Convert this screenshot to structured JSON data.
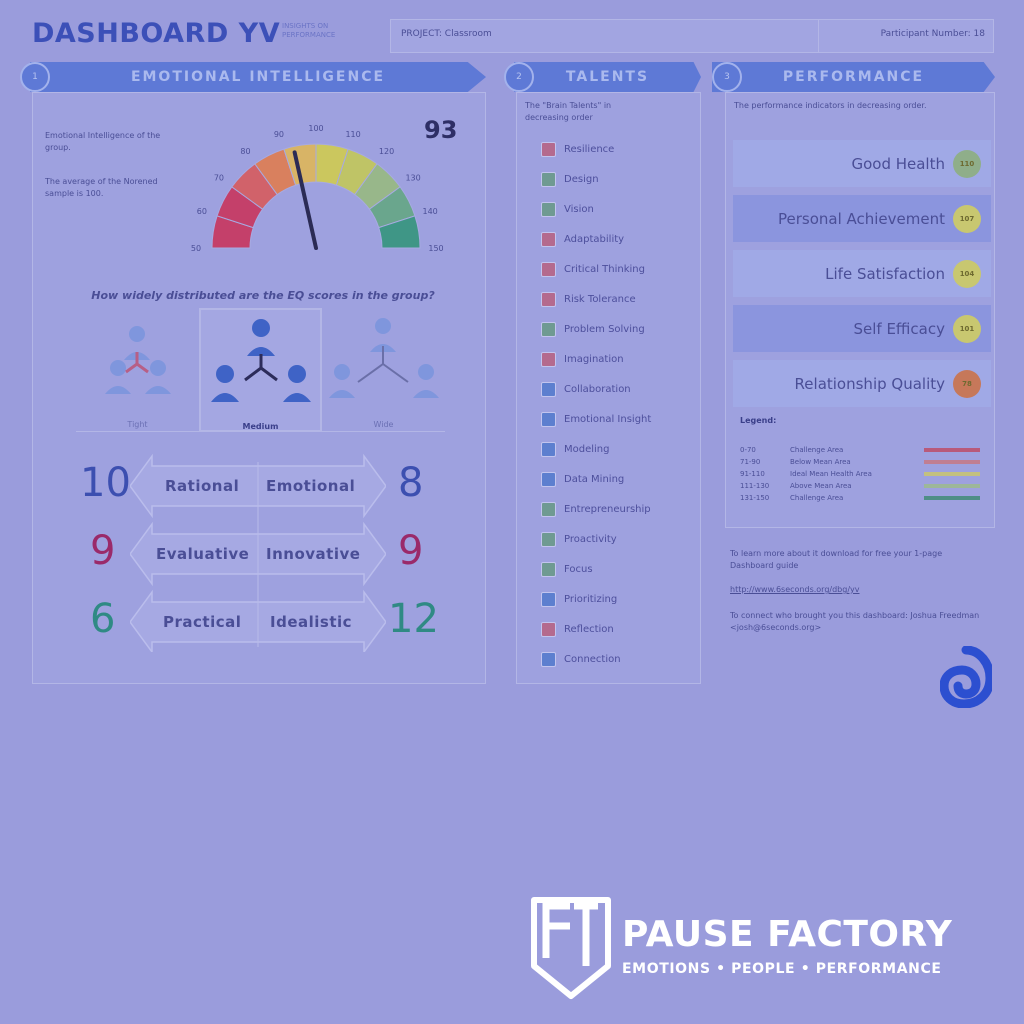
{
  "header": {
    "title": "DASHBOARD YV",
    "subtitle": "INSIGHTS ON PERFORMANCE",
    "project_label": "PROJECT: Classroom",
    "participant_label": "Participant Number: 18"
  },
  "emotional_intelligence": {
    "banner": "EMOTIONAL INTELLIGENCE",
    "number": "1",
    "desc1": "Emotional Intelligence of the group.",
    "desc2": "The average of the Norened sample is 100.",
    "score": "93",
    "score_value": 93,
    "gauge_min": 50,
    "gauge_max": 150,
    "gauge_ticks": [
      "50",
      "60",
      "70",
      "80",
      "90",
      "100",
      "110",
      "120",
      "130",
      "140",
      "150"
    ],
    "question": "How widely distributed are the EQ scores in the group?",
    "distribution": [
      {
        "label": "Tight",
        "selected": false
      },
      {
        "label": "Medium",
        "selected": true
      },
      {
        "label": "Wide",
        "selected": false
      }
    ],
    "pairs": [
      {
        "left_value": "10",
        "left_label": "Rational",
        "right_label": "Emotional",
        "right_value": "8",
        "left_color": "#3c4fb0",
        "right_color": "#3c4fb0"
      },
      {
        "left_value": "9",
        "left_label": "Evaluative",
        "right_label": "Innovative",
        "right_value": "9",
        "left_color": "#9a2a6a",
        "right_color": "#9a2a6a"
      },
      {
        "left_value": "6",
        "left_label": "Practical",
        "right_label": "Idealistic",
        "right_value": "12",
        "left_color": "#2f8a84",
        "right_color": "#2f8a84"
      }
    ]
  },
  "talents": {
    "banner": "TALENTS",
    "number": "2",
    "intro": "The \"Brain Talents\" in decreasing order",
    "items": [
      {
        "label": "Resilience",
        "color": "#b46a8e"
      },
      {
        "label": "Design",
        "color": "#6f9a92"
      },
      {
        "label": "Vision",
        "color": "#6f9a92"
      },
      {
        "label": "Adaptability",
        "color": "#b46a8e"
      },
      {
        "label": "Critical Thinking",
        "color": "#b46a8e"
      },
      {
        "label": "Risk Tolerance",
        "color": "#b46a8e"
      },
      {
        "label": "Problem Solving",
        "color": "#6f9a92"
      },
      {
        "label": "Imagination",
        "color": "#b46a8e"
      },
      {
        "label": "Collaboration",
        "color": "#5d7fcf"
      },
      {
        "label": "Emotional Insight",
        "color": "#5d7fcf"
      },
      {
        "label": "Modeling",
        "color": "#5d7fcf"
      },
      {
        "label": "Data Mining",
        "color": "#5d7fcf"
      },
      {
        "label": "Entrepreneurship",
        "color": "#6f9a92"
      },
      {
        "label": "Proactivity",
        "color": "#6f9a92"
      },
      {
        "label": "Focus",
        "color": "#6f9a92"
      },
      {
        "label": "Prioritizing",
        "color": "#5d7fcf"
      },
      {
        "label": "Reflection",
        "color": "#b46a8e"
      },
      {
        "label": "Connection",
        "color": "#5d7fcf"
      }
    ]
  },
  "performance": {
    "banner": "PERFORMANCE",
    "number": "3",
    "intro": "The performance indicators in decreasing order.",
    "items": [
      {
        "label": "Good Health",
        "value": "110",
        "color": "#8fae8a"
      },
      {
        "label": "Personal Achievement",
        "value": "107",
        "color": "#c8c770"
      },
      {
        "label": "Life Satisfaction",
        "value": "104",
        "color": "#c8c770"
      },
      {
        "label": "Self Efficacy",
        "value": "101",
        "color": "#c8c770"
      },
      {
        "label": "Relationship Quality",
        "value": "78",
        "color": "#c6785a"
      }
    ],
    "legend_title": "Legend:",
    "legend": [
      {
        "range": "0-70",
        "label": "Challenge Area",
        "color": "#b85a7a"
      },
      {
        "range": "71-90",
        "label": "Below Mean Area",
        "color": "#c07e92"
      },
      {
        "range": "91-110",
        "label": "Ideal Mean Health Area",
        "color": "#c3c07f"
      },
      {
        "range": "111-130",
        "label": "Above Mean Area",
        "color": "#9db79a"
      },
      {
        "range": "131-150",
        "label": "Challenge Area",
        "color": "#4f8e86"
      }
    ],
    "info1": "To learn more about it download for free your 1-page Dashboard guide",
    "info_link": "http://www.6seconds.org/dbg/yv",
    "info2": "To connect who brought you this dashboard: Joshua Freedman <josh@6seconds.org>"
  },
  "brand": {
    "title": "PAUSE FACTORY",
    "tagline": "EMOTIONS • PEOPLE • PERFORMANCE"
  }
}
